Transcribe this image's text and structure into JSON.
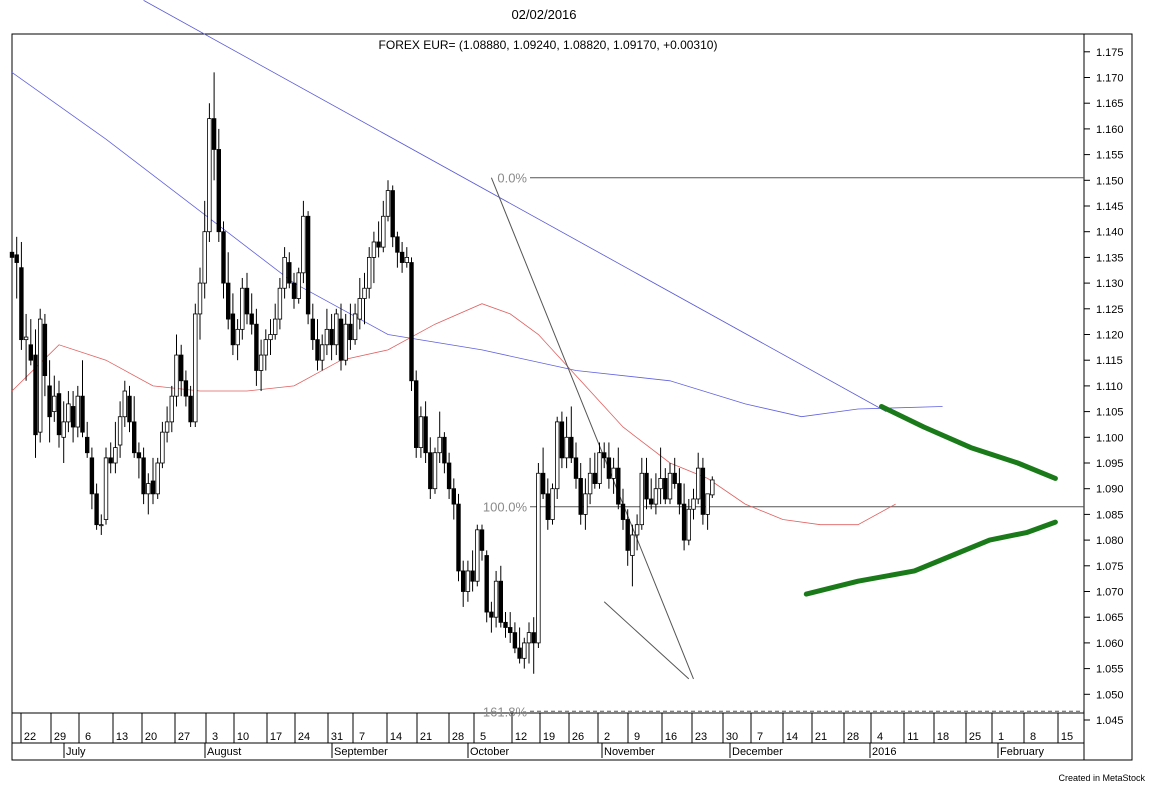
{
  "header": {
    "date": "02/02/2016",
    "quote_label": "FOREX EUR= (1.08880, 1.09240, 1.08820, 1.09170, +0.00310)"
  },
  "footer": {
    "credit": "Created in MetaStock"
  },
  "chart_data": {
    "type": "candlestick",
    "instrument": "FOREX EUR=",
    "ylim": [
      1.042,
      1.186
    ],
    "y_ticks": [
      "1.045",
      "1.050",
      "1.055",
      "1.060",
      "1.065",
      "1.070",
      "1.075",
      "1.080",
      "1.085",
      "1.090",
      "1.095",
      "1.100",
      "1.105",
      "1.110",
      "1.115",
      "1.120",
      "1.125",
      "1.130",
      "1.135",
      "1.140",
      "1.145",
      "1.150",
      "1.155",
      "1.160",
      "1.165",
      "1.170",
      "1.175"
    ],
    "x_day_labels": [
      "22",
      "29",
      "6",
      "13",
      "20",
      "27",
      "3",
      "10",
      "17",
      "24",
      "31",
      "7",
      "14",
      "21",
      "28",
      "5",
      "12",
      "19",
      "26",
      "2",
      "9",
      "16",
      "23",
      "30",
      "7",
      "14",
      "21",
      "28",
      "4",
      "11",
      "18",
      "25",
      "1",
      "8",
      "15"
    ],
    "x_month_labels": [
      "July",
      "August",
      "September",
      "October",
      "November",
      "December",
      "2016",
      "February"
    ],
    "fibonacci": [
      {
        "label": "0.0%",
        "value": 1.1505
      },
      {
        "label": "100.0%",
        "value": 1.0865
      },
      {
        "label": "161.8%",
        "value": 1.0467
      }
    ],
    "moving_average_colors": {
      "short": "#e06060",
      "long": "#6060e0"
    },
    "trend_color": "#1a7a1a",
    "candles": [
      [
        1.136,
        1.141,
        1.1285,
        1.135
      ],
      [
        1.1355,
        1.139,
        1.127,
        1.134
      ],
      [
        1.133,
        1.138,
        1.117,
        1.119
      ],
      [
        1.119,
        1.124,
        1.111,
        1.1195
      ],
      [
        1.118,
        1.123,
        1.114,
        1.115
      ],
      [
        1.116,
        1.121,
        1.096,
        1.1005
      ],
      [
        1.101,
        1.125,
        1.099,
        1.123
      ],
      [
        1.122,
        1.124,
        1.108,
        1.112
      ],
      [
        1.11,
        1.115,
        1.099,
        1.104
      ],
      [
        1.105,
        1.112,
        1.103,
        1.108
      ],
      [
        1.1085,
        1.111,
        1.098,
        1.1005
      ],
      [
        1.1,
        1.107,
        1.095,
        1.103
      ],
      [
        1.103,
        1.109,
        1.101,
        1.1065
      ],
      [
        1.106,
        1.109,
        1.099,
        1.102
      ],
      [
        1.102,
        1.11,
        1.1,
        1.108
      ],
      [
        1.108,
        1.115,
        1.1,
        1.101
      ],
      [
        1.1,
        1.103,
        1.096,
        1.097
      ],
      [
        1.096,
        1.098,
        1.086,
        1.089
      ],
      [
        1.089,
        1.091,
        1.082,
        1.083
      ],
      [
        1.083,
        1.085,
        1.081,
        1.083
      ],
      [
        1.084,
        1.098,
        1.083,
        1.096
      ],
      [
        1.096,
        1.099,
        1.093,
        1.095
      ],
      [
        1.095,
        1.103,
        1.093,
        1.098
      ],
      [
        1.0985,
        1.107,
        1.096,
        1.104
      ],
      [
        1.104,
        1.111,
        1.102,
        1.109
      ],
      [
        1.108,
        1.11,
        1.101,
        1.103
      ],
      [
        1.103,
        1.108,
        1.096,
        1.097
      ],
      [
        1.097,
        1.099,
        1.092,
        1.096
      ],
      [
        1.096,
        1.098,
        1.087,
        1.089
      ],
      [
        1.089,
        1.093,
        1.085,
        1.091
      ],
      [
        1.0915,
        1.096,
        1.087,
        1.089
      ],
      [
        1.089,
        1.096,
        1.088,
        1.095
      ],
      [
        1.095,
        1.103,
        1.094,
        1.101
      ],
      [
        1.101,
        1.106,
        1.099,
        1.103
      ],
      [
        1.103,
        1.11,
        1.101,
        1.108
      ],
      [
        1.108,
        1.12,
        1.106,
        1.116
      ],
      [
        1.116,
        1.118,
        1.108,
        1.111
      ],
      [
        1.111,
        1.113,
        1.106,
        1.108
      ],
      [
        1.108,
        1.11,
        1.102,
        1.103
      ],
      [
        1.103,
        1.126,
        1.102,
        1.124
      ],
      [
        1.124,
        1.133,
        1.119,
        1.13
      ],
      [
        1.13,
        1.146,
        1.127,
        1.14
      ],
      [
        1.14,
        1.165,
        1.138,
        1.162
      ],
      [
        1.162,
        1.171,
        1.15,
        1.156
      ],
      [
        1.156,
        1.16,
        1.138,
        1.14
      ],
      [
        1.14,
        1.142,
        1.127,
        1.13
      ],
      [
        1.13,
        1.136,
        1.121,
        1.123
      ],
      [
        1.124,
        1.128,
        1.116,
        1.118
      ],
      [
        1.118,
        1.123,
        1.115,
        1.121
      ],
      [
        1.121,
        1.131,
        1.119,
        1.129
      ],
      [
        1.129,
        1.132,
        1.122,
        1.124
      ],
      [
        1.124,
        1.128,
        1.12,
        1.122
      ],
      [
        1.122,
        1.125,
        1.11,
        1.113
      ],
      [
        1.113,
        1.119,
        1.109,
        1.116
      ],
      [
        1.116,
        1.121,
        1.113,
        1.119
      ],
      [
        1.119,
        1.123,
        1.116,
        1.12
      ],
      [
        1.12,
        1.126,
        1.119,
        1.123
      ],
      [
        1.123,
        1.131,
        1.121,
        1.129
      ],
      [
        1.129,
        1.137,
        1.127,
        1.135
      ],
      [
        1.134,
        1.136,
        1.129,
        1.13
      ],
      [
        1.13,
        1.132,
        1.125,
        1.127
      ],
      [
        1.127,
        1.133,
        1.126,
        1.132
      ],
      [
        1.132,
        1.146,
        1.13,
        1.143
      ],
      [
        1.143,
        1.144,
        1.122,
        1.124
      ],
      [
        1.123,
        1.126,
        1.117,
        1.119
      ],
      [
        1.119,
        1.123,
        1.113,
        1.115
      ],
      [
        1.115,
        1.12,
        1.113,
        1.118
      ],
      [
        1.118,
        1.125,
        1.116,
        1.121
      ],
      [
        1.121,
        1.124,
        1.115,
        1.118
      ],
      [
        1.118,
        1.125,
        1.116,
        1.124
      ],
      [
        1.123,
        1.126,
        1.113,
        1.115
      ],
      [
        1.115,
        1.124,
        1.114,
        1.122
      ],
      [
        1.122,
        1.126,
        1.117,
        1.119
      ],
      [
        1.119,
        1.126,
        1.118,
        1.124
      ],
      [
        1.123,
        1.131,
        1.121,
        1.127
      ],
      [
        1.127,
        1.132,
        1.122,
        1.129
      ],
      [
        1.129,
        1.137,
        1.127,
        1.135
      ],
      [
        1.135,
        1.14,
        1.13,
        1.138
      ],
      [
        1.138,
        1.142,
        1.135,
        1.137
      ],
      [
        1.137,
        1.146,
        1.136,
        1.143
      ],
      [
        1.143,
        1.15,
        1.142,
        1.148
      ],
      [
        1.148,
        1.149,
        1.137,
        1.139
      ],
      [
        1.139,
        1.14,
        1.133,
        1.136
      ],
      [
        1.136,
        1.138,
        1.132,
        1.134
      ],
      [
        1.134,
        1.137,
        1.133,
        1.135
      ],
      [
        1.134,
        1.135,
        1.109,
        1.111
      ],
      [
        1.111,
        1.113,
        1.096,
        1.098
      ],
      [
        1.098,
        1.106,
        1.096,
        1.104
      ],
      [
        1.104,
        1.107,
        1.095,
        1.097
      ],
      [
        1.097,
        1.1,
        1.088,
        1.09
      ],
      [
        1.09,
        1.098,
        1.089,
        1.097
      ],
      [
        1.097,
        1.105,
        1.095,
        1.1
      ],
      [
        1.1,
        1.101,
        1.093,
        1.095
      ],
      [
        1.095,
        1.097,
        1.088,
        1.09
      ],
      [
        1.09,
        1.092,
        1.084,
        1.087
      ],
      [
        1.087,
        1.089,
        1.072,
        1.074
      ],
      [
        1.074,
        1.076,
        1.067,
        1.07
      ],
      [
        1.07,
        1.076,
        1.068,
        1.074
      ],
      [
        1.074,
        1.078,
        1.07,
        1.072
      ],
      [
        1.072,
        1.083,
        1.071,
        1.082
      ],
      [
        1.082,
        1.083,
        1.076,
        1.078
      ],
      [
        1.077,
        1.078,
        1.064,
        1.066
      ],
      [
        1.066,
        1.068,
        1.062,
        1.065
      ],
      [
        1.065,
        1.074,
        1.063,
        1.072
      ],
      [
        1.072,
        1.075,
        1.063,
        1.064
      ],
      [
        1.064,
        1.066,
        1.061,
        1.063
      ],
      [
        1.063,
        1.066,
        1.06,
        1.062
      ],
      [
        1.062,
        1.064,
        1.058,
        1.059
      ],
      [
        1.059,
        1.063,
        1.056,
        1.057
      ],
      [
        1.057,
        1.061,
        1.055,
        1.06
      ],
      [
        1.06,
        1.064,
        1.056,
        1.062
      ],
      [
        1.062,
        1.065,
        1.054,
        1.06
      ],
      [
        1.06,
        1.095,
        1.059,
        1.093
      ],
      [
        1.093,
        1.098,
        1.088,
        1.089
      ],
      [
        1.089,
        1.092,
        1.082,
        1.084
      ],
      [
        1.084,
        1.091,
        1.083,
        1.09
      ],
      [
        1.09,
        1.104,
        1.088,
        1.103
      ],
      [
        1.103,
        1.105,
        1.094,
        1.096
      ],
      [
        1.096,
        1.104,
        1.094,
        1.1
      ],
      [
        1.1,
        1.106,
        1.095,
        1.096
      ],
      [
        1.096,
        1.099,
        1.09,
        1.092
      ],
      [
        1.092,
        1.095,
        1.083,
        1.085
      ],
      [
        1.085,
        1.092,
        1.082,
        1.089
      ],
      [
        1.089,
        1.096,
        1.087,
        1.093
      ],
      [
        1.093,
        1.097,
        1.09,
        1.091
      ],
      [
        1.091,
        1.099,
        1.09,
        1.097
      ],
      [
        1.097,
        1.099,
        1.094,
        1.096
      ],
      [
        1.096,
        1.099,
        1.09,
        1.092
      ],
      [
        1.092,
        1.096,
        1.089,
        1.094
      ],
      [
        1.094,
        1.098,
        1.086,
        1.087
      ],
      [
        1.087,
        1.09,
        1.082,
        1.084
      ],
      [
        1.084,
        1.086,
        1.075,
        1.078
      ],
      [
        1.077,
        1.083,
        1.071,
        1.081
      ],
      [
        1.081,
        1.085,
        1.078,
        1.083
      ],
      [
        1.083,
        1.096,
        1.082,
        1.093
      ],
      [
        1.093,
        1.096,
        1.086,
        1.088
      ],
      [
        1.088,
        1.092,
        1.086,
        1.087
      ],
      [
        1.087,
        1.093,
        1.085,
        1.09
      ],
      [
        1.09,
        1.098,
        1.087,
        1.092
      ],
      [
        1.092,
        1.094,
        1.087,
        1.088
      ],
      [
        1.088,
        1.095,
        1.087,
        1.093
      ],
      [
        1.093,
        1.096,
        1.09,
        1.091
      ],
      [
        1.091,
        1.094,
        1.085,
        1.087
      ],
      [
        1.087,
        1.091,
        1.078,
        1.08
      ],
      [
        1.08,
        1.088,
        1.079,
        1.086
      ],
      [
        1.086,
        1.09,
        1.084,
        1.088
      ],
      [
        1.088,
        1.097,
        1.087,
        1.094
      ],
      [
        1.094,
        1.096,
        1.083,
        1.085
      ],
      [
        1.085,
        1.089,
        1.082,
        1.089
      ],
      [
        1.0888,
        1.0924,
        1.0882,
        1.0917
      ]
    ],
    "ma_short": [
      [
        0,
        1.109
      ],
      [
        10,
        1.118
      ],
      [
        20,
        1.115
      ],
      [
        30,
        1.11
      ],
      [
        40,
        1.109
      ],
      [
        50,
        1.109
      ],
      [
        60,
        1.11
      ],
      [
        70,
        1.115
      ],
      [
        80,
        1.117
      ],
      [
        90,
        1.122
      ],
      [
        100,
        1.126
      ],
      [
        106,
        1.124
      ],
      [
        112,
        1.12
      ],
      [
        120,
        1.112
      ],
      [
        130,
        1.102
      ],
      [
        140,
        1.095
      ],
      [
        148,
        1.092
      ],
      [
        156,
        1.087
      ],
      [
        164,
        1.084
      ],
      [
        172,
        1.083
      ],
      [
        180,
        1.083
      ],
      [
        188,
        1.087
      ]
    ],
    "ma_long": [
      [
        0,
        1.171
      ],
      [
        20,
        1.158
      ],
      [
        40,
        1.144
      ],
      [
        60,
        1.13
      ],
      [
        80,
        1.12
      ],
      [
        100,
        1.117
      ],
      [
        120,
        1.113
      ],
      [
        140,
        1.111
      ],
      [
        156,
        1.1065
      ],
      [
        168,
        1.104
      ],
      [
        180,
        1.1055
      ],
      [
        198,
        1.106
      ]
    ],
    "trend_lines": [
      {
        "from": [
          28,
          1.185
        ],
        "to": [
          186,
          1.105
        ]
      },
      {
        "from": [
          102,
          1.1505
        ],
        "to": [
          145,
          1.053
        ]
      },
      {
        "from": [
          126,
          1.068
        ],
        "to": [
          144,
          1.053
        ]
      }
    ],
    "resistance_curve": [
      [
        185,
        1.106
      ],
      [
        194,
        1.102
      ],
      [
        204,
        1.098
      ],
      [
        214,
        1.095
      ],
      [
        222,
        1.092
      ]
    ],
    "support_curve": [
      [
        169,
        1.0695
      ],
      [
        180,
        1.072
      ],
      [
        192,
        1.074
      ],
      [
        200,
        1.077
      ],
      [
        208,
        1.08
      ],
      [
        216,
        1.0815
      ],
      [
        222,
        1.0835
      ]
    ]
  }
}
